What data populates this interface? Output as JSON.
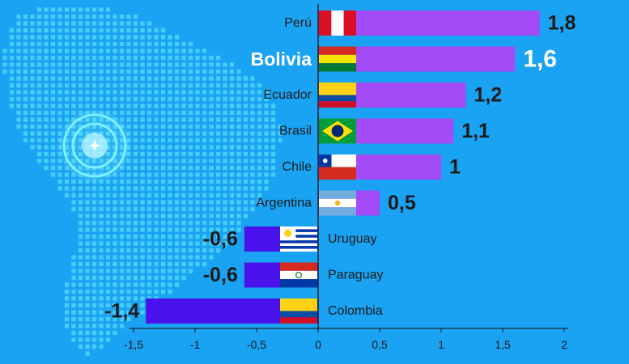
{
  "chart_data": {
    "type": "bar",
    "orientation": "horizontal",
    "categories": [
      "Perú",
      "Bolivia",
      "Ecuador",
      "Brasil",
      "Chile",
      "Argentina",
      "Uruguay",
      "Paraguay",
      "Colombia"
    ],
    "values": [
      1.8,
      1.6,
      1.2,
      1.1,
      1.0,
      0.5,
      -0.6,
      -0.6,
      -1.4
    ],
    "value_labels": [
      "1,8",
      "1,6",
      "1,2",
      "1,1",
      "1",
      "0,5",
      "-0,6",
      "-0,6",
      "-1,4"
    ],
    "highlight": "Bolivia",
    "xlim": [
      -1.5,
      2
    ],
    "xticks": [
      -1.5,
      -1,
      -0.5,
      0,
      0.5,
      1,
      1.5,
      2
    ],
    "xtick_labels": [
      "-1,5",
      "-1",
      "-0,5",
      "0",
      "0,5",
      "1",
      "1,5",
      "2"
    ],
    "grid": false,
    "colors": {
      "background": "#1aa3f2",
      "positive_bar": "#a24bf6",
      "negative_bar": "#4a12ea",
      "map_dots": "#4fd3ff",
      "highlight_ring": "#7ff0ff",
      "text": "#1a1a1a",
      "highlight_text": "#ffffff"
    },
    "flags": [
      "peru-flag-icon",
      "bolivia-flag-icon",
      "ecuador-flag-icon",
      "brazil-flag-icon",
      "chile-flag-icon",
      "argentina-flag-icon",
      "uruguay-flag-icon",
      "paraguay-flag-icon",
      "colombia-flag-icon"
    ],
    "decoration": "south-america-dot-map-icon"
  }
}
